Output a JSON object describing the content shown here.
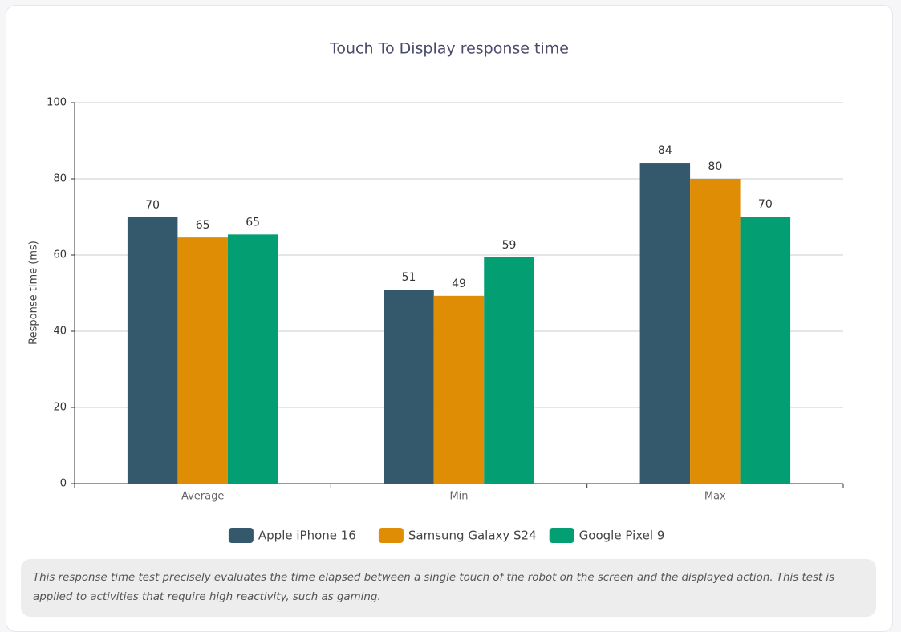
{
  "chart_data": {
    "type": "bar",
    "title": "Touch To Display response time",
    "ylabel": "Response time (ms)",
    "categories": [
      "Average",
      "Min",
      "Max"
    ],
    "series": [
      {
        "name": "Apple iPhone 16",
        "color": "#34596c",
        "values": [
          69.9,
          50.9,
          84.2
        ],
        "value_labels": [
          "70",
          "51",
          "84"
        ]
      },
      {
        "name": "Samsung Galaxy S24",
        "color": "#de8d05",
        "values": [
          64.6,
          49.3,
          80
        ],
        "value_labels": [
          "65",
          "49",
          "80"
        ]
      },
      {
        "name": "Google Pixel 9",
        "color": "#039e72",
        "values": [
          65.4,
          59.4,
          70.1
        ],
        "value_labels": [
          "65",
          "59",
          "70"
        ]
      }
    ],
    "ylim": [
      0,
      100
    ],
    "yticks": [
      0,
      20,
      40,
      60,
      80,
      100
    ],
    "grid": true,
    "legend": "bottom"
  },
  "note": "This response time test precisely evaluates the time elapsed between a single touch of the robot on the screen and the displayed action. This test is applied to activities that require high reactivity, such as gaming."
}
